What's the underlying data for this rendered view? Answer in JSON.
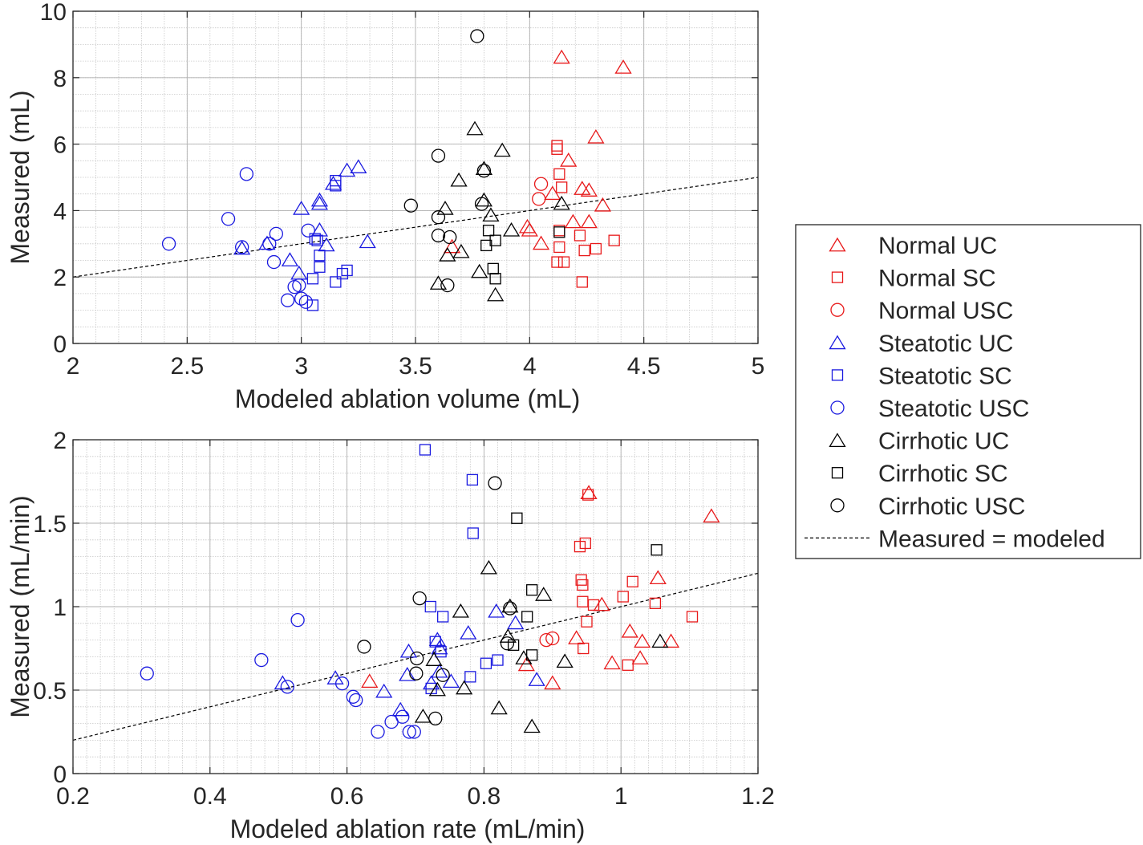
{
  "colors": {
    "Normal": "#e8191a",
    "Steatotic": "#1a1ae0",
    "Cirrhotic": "#000000"
  },
  "legend": {
    "placement": "right",
    "entries": [
      {
        "label": "Normal UC",
        "group": "Normal",
        "marker": "triangle"
      },
      {
        "label": "Normal SC",
        "group": "Normal",
        "marker": "square"
      },
      {
        "label": "Normal USC",
        "group": "Normal",
        "marker": "circle"
      },
      {
        "label": "Steatotic UC",
        "group": "Steatotic",
        "marker": "triangle"
      },
      {
        "label": "Steatotic SC",
        "group": "Steatotic",
        "marker": "square"
      },
      {
        "label": "Steatotic USC",
        "group": "Steatotic",
        "marker": "circle"
      },
      {
        "label": "Cirrhotic UC",
        "group": "Cirrhotic",
        "marker": "triangle"
      },
      {
        "label": "Cirrhotic SC",
        "group": "Cirrhotic",
        "marker": "square"
      },
      {
        "label": "Cirrhotic USC",
        "group": "Cirrhotic",
        "marker": "circle"
      },
      {
        "label": "Measured = modeled",
        "marker": "dashed-line"
      }
    ]
  },
  "chart_data": [
    {
      "type": "scatter",
      "xlabel": "Modeled ablation volume (mL)",
      "ylabel": "Measured (mL)",
      "xlim": [
        2,
        5
      ],
      "ylim": [
        0,
        10
      ],
      "xticks": [
        2,
        2.5,
        3,
        3.5,
        4,
        4.5,
        5
      ],
      "xtick_labels": [
        "2",
        "2.5",
        "3",
        "3.5",
        "4",
        "4.5",
        "5"
      ],
      "yticks": [
        0,
        2,
        4,
        6,
        8,
        10
      ],
      "ytick_labels": [
        "0",
        "2",
        "4",
        "6",
        "8",
        "10"
      ],
      "minor_x": 0.1,
      "minor_y": 0.5,
      "grid": true,
      "reference_line": {
        "label": "Measured = modeled",
        "slope": 1,
        "intercept": 0
      },
      "series": [
        {
          "name": "Normal UC",
          "points": [
            [
              4.14,
              8.6
            ],
            [
              4.41,
              8.3
            ],
            [
              4.29,
              6.2
            ],
            [
              4.17,
              5.5
            ],
            [
              4.23,
              4.65
            ],
            [
              4.26,
              4.6
            ],
            [
              4.1,
              4.5
            ],
            [
              4.32,
              4.15
            ],
            [
              4.19,
              3.65
            ],
            [
              4.26,
              3.65
            ],
            [
              3.99,
              3.5
            ],
            [
              4.0,
              3.4
            ],
            [
              4.05,
              3.0
            ],
            [
              3.66,
              2.9
            ]
          ]
        },
        {
          "name": "Normal SC",
          "points": [
            [
              4.12,
              5.95
            ],
            [
              4.12,
              5.85
            ],
            [
              4.13,
              5.1
            ],
            [
              4.14,
              4.7
            ],
            [
              4.13,
              3.4
            ],
            [
              4.13,
              2.9
            ],
            [
              4.22,
              3.25
            ],
            [
              4.29,
              2.85
            ],
            [
              4.37,
              3.1
            ],
            [
              4.12,
              2.45
            ],
            [
              4.15,
              2.45
            ],
            [
              4.24,
              2.8
            ],
            [
              4.23,
              1.85
            ]
          ]
        },
        {
          "name": "Normal USC",
          "points": [
            [
              4.05,
              4.8
            ],
            [
              4.04,
              4.35
            ]
          ]
        },
        {
          "name": "Steatotic UC",
          "points": [
            [
              3.25,
              5.3
            ],
            [
              3.2,
              5.2
            ],
            [
              3.14,
              4.8
            ],
            [
              3.08,
              4.3
            ],
            [
              3.08,
              4.2
            ],
            [
              3.0,
              4.05
            ],
            [
              3.08,
              3.4
            ],
            [
              3.11,
              2.95
            ],
            [
              3.29,
              3.05
            ],
            [
              2.85,
              3.0
            ],
            [
              2.74,
              2.85
            ],
            [
              2.95,
              2.5
            ],
            [
              2.99,
              2.1
            ]
          ]
        },
        {
          "name": "Steatotic SC",
          "points": [
            [
              3.15,
              4.9
            ],
            [
              3.15,
              4.75
            ],
            [
              3.06,
              3.15
            ],
            [
              3.07,
              3.1
            ],
            [
              3.08,
              2.65
            ],
            [
              3.08,
              2.3
            ],
            [
              3.05,
              1.95
            ],
            [
              3.15,
              1.85
            ],
            [
              3.18,
              2.1
            ],
            [
              3.2,
              2.2
            ],
            [
              3.05,
              1.15
            ]
          ]
        },
        {
          "name": "Steatotic USC",
          "points": [
            [
              2.76,
              5.1
            ],
            [
              2.68,
              3.75
            ],
            [
              2.42,
              3.0
            ],
            [
              2.74,
              2.9
            ],
            [
              2.86,
              3.0
            ],
            [
              2.89,
              3.3
            ],
            [
              3.03,
              3.4
            ],
            [
              2.88,
              2.45
            ],
            [
              2.97,
              1.7
            ],
            [
              2.99,
              1.75
            ],
            [
              2.94,
              1.3
            ],
            [
              3.0,
              1.35
            ],
            [
              3.02,
              1.25
            ]
          ]
        },
        {
          "name": "Cirrhotic UC",
          "points": [
            [
              3.76,
              6.45
            ],
            [
              3.88,
              5.8
            ],
            [
              3.8,
              5.25
            ],
            [
              3.69,
              4.9
            ],
            [
              3.8,
              4.3
            ],
            [
              3.63,
              4.05
            ],
            [
              3.83,
              3.85
            ],
            [
              4.14,
              4.2
            ],
            [
              3.92,
              3.4
            ],
            [
              3.7,
              2.75
            ],
            [
              3.64,
              2.65
            ],
            [
              3.78,
              2.15
            ],
            [
              3.6,
              1.8
            ],
            [
              3.85,
              1.45
            ]
          ]
        },
        {
          "name": "Cirrhotic SC",
          "points": [
            [
              3.82,
              3.4
            ],
            [
              3.85,
              3.1
            ],
            [
              3.81,
              2.95
            ],
            [
              3.84,
              2.25
            ],
            [
              3.85,
              1.95
            ],
            [
              4.13,
              3.35
            ]
          ]
        },
        {
          "name": "Cirrhotic USC",
          "points": [
            [
              3.77,
              9.25
            ],
            [
              3.6,
              5.65
            ],
            [
              3.8,
              5.2
            ],
            [
              3.79,
              4.2
            ],
            [
              3.48,
              4.15
            ],
            [
              3.6,
              3.8
            ],
            [
              3.6,
              3.25
            ],
            [
              3.65,
              3.2
            ],
            [
              3.64,
              1.75
            ]
          ]
        }
      ]
    },
    {
      "type": "scatter",
      "xlabel": "Modeled ablation rate (mL/min)",
      "ylabel": "Measured (mL/min)",
      "xlim": [
        0.2,
        1.2
      ],
      "ylim": [
        0,
        2
      ],
      "xticks": [
        0.2,
        0.4,
        0.6,
        0.8,
        1,
        1.2
      ],
      "xtick_labels": [
        "0.2",
        "0.4",
        "0.6",
        "0.8",
        "1",
        "1.2"
      ],
      "yticks": [
        0,
        0.5,
        1,
        1.5,
        2
      ],
      "ytick_labels": [
        "0",
        "0.5",
        "1",
        "1.5",
        "2"
      ],
      "minor_x": 0.02,
      "minor_y": 0.1,
      "grid": true,
      "reference_line": {
        "label": "Measured = modeled",
        "slope": 1,
        "intercept": 0
      },
      "series": [
        {
          "name": "Normal UC",
          "points": [
            [
              1.132,
              1.54
            ],
            [
              0.953,
              1.68
            ],
            [
              1.054,
              1.17
            ],
            [
              0.972,
              1.01
            ],
            [
              1.013,
              0.85
            ],
            [
              1.031,
              0.79
            ],
            [
              1.073,
              0.79
            ],
            [
              0.935,
              0.81
            ],
            [
              0.987,
              0.66
            ],
            [
              1.028,
              0.69
            ],
            [
              0.862,
              0.65
            ],
            [
              0.9,
              0.54
            ],
            [
              0.633,
              0.55
            ]
          ]
        },
        {
          "name": "Normal SC",
          "points": [
            [
              0.952,
              1.67
            ],
            [
              0.948,
              1.38
            ],
            [
              0.94,
              1.36
            ],
            [
              0.942,
              1.16
            ],
            [
              0.944,
              1.13
            ],
            [
              1.017,
              1.15
            ],
            [
              0.944,
              1.03
            ],
            [
              0.96,
              1.01
            ],
            [
              1.003,
              1.06
            ],
            [
              1.05,
              1.02
            ],
            [
              0.95,
              0.91
            ],
            [
              1.104,
              0.94
            ],
            [
              0.945,
              0.75
            ],
            [
              1.01,
              0.65
            ]
          ]
        },
        {
          "name": "Normal USC",
          "points": [
            [
              0.891,
              0.8
            ],
            [
              0.9,
              0.81
            ]
          ]
        },
        {
          "name": "Steatotic UC",
          "points": [
            [
              0.506,
              0.54
            ],
            [
              0.583,
              0.57
            ],
            [
              0.654,
              0.49
            ],
            [
              0.678,
              0.38
            ],
            [
              0.688,
              0.59
            ],
            [
              0.69,
              0.73
            ],
            [
              0.732,
              0.8
            ],
            [
              0.735,
              0.75
            ],
            [
              0.735,
              0.61
            ],
            [
              0.723,
              0.54
            ],
            [
              0.752,
              0.55
            ],
            [
              0.777,
              0.84
            ],
            [
              0.818,
              0.97
            ],
            [
              0.846,
              0.9
            ],
            [
              0.877,
              0.56
            ]
          ]
        },
        {
          "name": "Steatotic SC",
          "points": [
            [
              0.714,
              1.94
            ],
            [
              0.783,
              1.76
            ],
            [
              0.784,
              1.44
            ],
            [
              0.722,
              1.0
            ],
            [
              0.74,
              0.94
            ],
            [
              0.729,
              0.79
            ],
            [
              0.737,
              0.73
            ],
            [
              0.723,
              0.51
            ],
            [
              0.78,
              0.58
            ],
            [
              0.803,
              0.66
            ],
            [
              0.82,
              0.68
            ]
          ]
        },
        {
          "name": "Steatotic USC",
          "points": [
            [
              0.308,
              0.6
            ],
            [
              0.475,
              0.68
            ],
            [
              0.528,
              0.92
            ],
            [
              0.513,
              0.52
            ],
            [
              0.593,
              0.54
            ],
            [
              0.609,
              0.46
            ],
            [
              0.613,
              0.44
            ],
            [
              0.645,
              0.25
            ],
            [
              0.665,
              0.31
            ],
            [
              0.681,
              0.34
            ],
            [
              0.691,
              0.25
            ],
            [
              0.698,
              0.25
            ]
          ]
        },
        {
          "name": "Cirrhotic UC",
          "points": [
            [
              0.807,
              1.23
            ],
            [
              0.887,
              1.07
            ],
            [
              0.766,
              0.97
            ],
            [
              0.838,
              1.0
            ],
            [
              0.835,
              0.82
            ],
            [
              0.858,
              0.69
            ],
            [
              0.918,
              0.67
            ],
            [
              1.057,
              0.79
            ],
            [
              0.727,
              0.68
            ],
            [
              0.732,
              0.5
            ],
            [
              0.771,
              0.51
            ],
            [
              0.711,
              0.34
            ],
            [
              0.822,
              0.39
            ],
            [
              0.87,
              0.28
            ]
          ]
        },
        {
          "name": "Cirrhotic SC",
          "points": [
            [
              0.848,
              1.53
            ],
            [
              1.052,
              1.34
            ],
            [
              0.87,
              1.1
            ],
            [
              0.863,
              0.94
            ],
            [
              0.843,
              0.77
            ],
            [
              0.87,
              0.71
            ]
          ]
        },
        {
          "name": "Cirrhotic USC",
          "points": [
            [
              0.816,
              1.74
            ],
            [
              0.706,
              1.05
            ],
            [
              0.625,
              0.76
            ],
            [
              0.702,
              0.69
            ],
            [
              0.701,
              0.6
            ],
            [
              0.74,
              0.59
            ],
            [
              0.729,
              0.33
            ],
            [
              0.838,
              0.99
            ],
            [
              0.834,
              0.78
            ]
          ]
        }
      ]
    }
  ]
}
